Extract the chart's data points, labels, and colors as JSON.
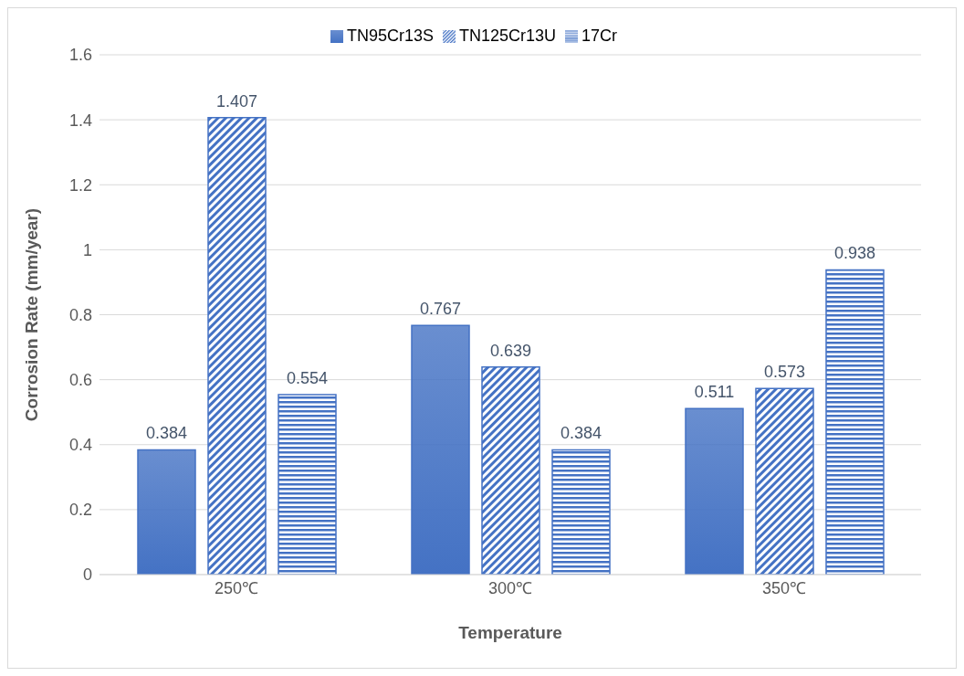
{
  "chart_data": {
    "type": "bar",
    "xlabel": "Temperature",
    "ylabel": "Corrosion Rate (mm/year)",
    "categories": [
      "250℃",
      "300℃",
      "350℃"
    ],
    "series": [
      {
        "name": "TN95Cr13S",
        "color": "#4472c4",
        "values": [
          0.384,
          0.767,
          0.511
        ]
      },
      {
        "name": "TN125Cr13U",
        "color": "#4472c4",
        "values": [
          1.407,
          0.639,
          0.573
        ]
      },
      {
        "name": "17Cr",
        "color": "#4472c4",
        "values": [
          0.554,
          0.384,
          0.938
        ]
      }
    ],
    "ylim": [
      0,
      1.6
    ],
    "yticks": [
      0,
      0.2,
      0.4,
      0.6,
      0.8,
      1,
      1.2,
      1.4,
      1.6
    ],
    "grid": "y",
    "legend": "top",
    "data_labels": true
  }
}
